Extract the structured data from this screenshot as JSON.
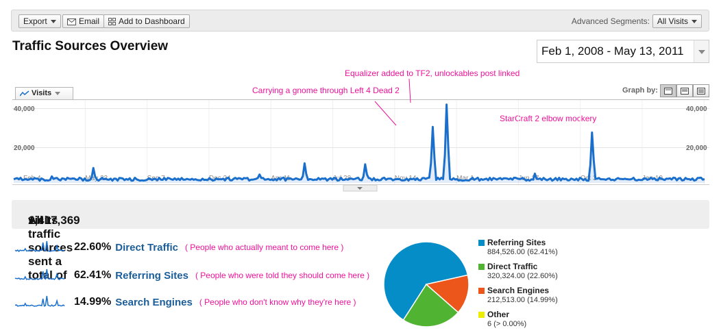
{
  "toolbar": {
    "export_label": "Export",
    "email_label": "Email",
    "dashboard_label": "Add to Dashboard",
    "segments_label": "Advanced Segments:",
    "segments_value": "All Visits"
  },
  "page_title": "Traffic Sources Overview",
  "date_range": "Feb 1, 2008 - May 13, 2011",
  "chart_controls": {
    "metric": "Visits",
    "graph_by_label": "Graph by:"
  },
  "annotations": {
    "equalizer": "Equalizer added to TF2, unlockables post linked",
    "gnome": "Carrying a gnome through Left 4 Dead 2",
    "starcraft": "StarCraft 2 elbow mockery"
  },
  "chart_data": {
    "type": "area",
    "series": [
      {
        "name": "Visits",
        "color": "#1a6ecc"
      }
    ],
    "y_ticks": [
      "40,000",
      "20,000"
    ],
    "x_ticks": [
      "Feb 4",
      "May 22",
      "Sep 7",
      "Dec 24",
      "Apr 11",
      "Jul 28",
      "Nov 14",
      "Mar 1",
      "Jun 17",
      "Oct 3",
      "Jan 19"
    ],
    "ylim": [
      0,
      45000
    ],
    "grid": true,
    "spikes": [
      {
        "x": 0.116,
        "y": 8000
      },
      {
        "x": 0.42,
        "y": 10500
      },
      {
        "x": 0.51,
        "y": 10000
      },
      {
        "x": 0.607,
        "y": 30000
      },
      {
        "x": 0.627,
        "y": 42000
      },
      {
        "x": 0.837,
        "y": 27000
      },
      {
        "x": 0.357,
        "y": 4500
      },
      {
        "x": 0.755,
        "y": 5000
      },
      {
        "x": 0.055,
        "y": 3500
      }
    ]
  },
  "summary": {
    "prefix": "All traffic sources sent a total of ",
    "total": "1,417,369",
    "suffix": " visits"
  },
  "sources": [
    {
      "pct": "22.60%",
      "name": "Direct Traffic",
      "note": "( People who actually meant to come here )"
    },
    {
      "pct": "62.41%",
      "name": "Referring Sites",
      "note": "( People who were told they should come here )"
    },
    {
      "pct": "14.99%",
      "name": "Search Engines",
      "note": "( People who don't know why they're here )"
    }
  ],
  "pie": [
    {
      "name": "Referring Sites",
      "value": "884,526.00 (62.41%)",
      "fraction": 0.6241,
      "color": "#058dc7"
    },
    {
      "name": "Direct Traffic",
      "value": "320,324.00 (22.60%)",
      "fraction": 0.226,
      "color": "#50b432"
    },
    {
      "name": "Search Engines",
      "value": "212,513.00 (14.99%)",
      "fraction": 0.1499,
      "color": "#ed561b"
    },
    {
      "name": "Other",
      "value": "6 (> 0.00%)",
      "fraction": 0.0,
      "color": "#eded00"
    }
  ]
}
